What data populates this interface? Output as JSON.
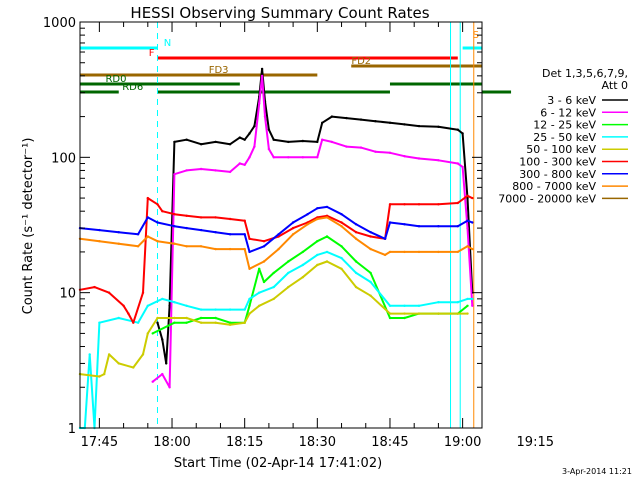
{
  "chart_data": {
    "type": "line",
    "title": "HESSI Observing Summary Count Rates",
    "xlabel": "Start Time (02-Apr-14 17:41:02)",
    "ylabel": "Count Rate (s⁻¹ detector⁻¹)",
    "yscale": "log",
    "ylim": [
      1,
      1000
    ],
    "xlim_minutes": [
      0,
      83
    ],
    "x_ticks": [
      {
        "t": 4,
        "label": "17:45"
      },
      {
        "t": 19,
        "label": "18:00"
      },
      {
        "t": 34,
        "label": "18:15"
      },
      {
        "t": 49,
        "label": "18:30"
      },
      {
        "t": 64,
        "label": "18:45"
      },
      {
        "t": 79,
        "label": "19:00"
      },
      {
        "t": 94,
        "label": "19:15"
      }
    ],
    "y_ticks": [
      {
        "v": 1,
        "label": "1"
      },
      {
        "v": 10,
        "label": "10"
      },
      {
        "v": 100,
        "label": "100"
      },
      {
        "v": 1000,
        "label": "1000"
      }
    ],
    "legend_header": [
      "Det 1,3,5,6,7,9,",
      "Att 0"
    ],
    "footer_date": "3-Apr-2014 11:21",
    "series": [
      {
        "name": "3 - 6 keV",
        "color": "#000000",
        "points": [
          [
            16,
            6
          ],
          [
            17,
            4.5
          ],
          [
            17.8,
            3
          ],
          [
            18.5,
            8
          ],
          [
            19.5,
            130
          ],
          [
            22,
            135
          ],
          [
            25,
            125
          ],
          [
            28,
            130
          ],
          [
            31,
            125
          ],
          [
            33,
            140
          ],
          [
            34,
            135
          ],
          [
            35,
            150
          ],
          [
            36,
            170
          ],
          [
            37,
            280
          ],
          [
            37.6,
            450
          ],
          [
            38.2,
            260
          ],
          [
            39,
            160
          ],
          [
            40,
            135
          ],
          [
            43,
            130
          ],
          [
            46,
            132
          ],
          [
            49,
            130
          ],
          [
            50,
            180
          ],
          [
            52,
            200
          ],
          [
            55,
            195
          ],
          [
            58,
            190
          ],
          [
            61,
            185
          ],
          [
            64,
            180
          ],
          [
            67,
            175
          ],
          [
            70,
            170
          ],
          [
            74,
            168
          ],
          [
            78,
            160
          ],
          [
            79,
            150
          ],
          [
            80,
            50
          ],
          [
            81,
            10
          ]
        ]
      },
      {
        "name": "6 - 12 keV",
        "color": "#ff00ff",
        "points": [
          [
            15,
            2.2
          ],
          [
            17,
            2.5
          ],
          [
            18.5,
            2
          ],
          [
            19.5,
            75
          ],
          [
            22,
            80
          ],
          [
            25,
            82
          ],
          [
            28,
            80
          ],
          [
            31,
            78
          ],
          [
            33,
            90
          ],
          [
            34,
            88
          ],
          [
            35,
            100
          ],
          [
            36,
            120
          ],
          [
            37,
            250
          ],
          [
            37.6,
            400
          ],
          [
            38.2,
            200
          ],
          [
            39,
            115
          ],
          [
            40,
            100
          ],
          [
            43,
            100
          ],
          [
            46,
            100
          ],
          [
            49,
            100
          ],
          [
            50,
            135
          ],
          [
            52,
            130
          ],
          [
            55,
            120
          ],
          [
            58,
            118
          ],
          [
            61,
            110
          ],
          [
            64,
            108
          ],
          [
            67,
            102
          ],
          [
            70,
            98
          ],
          [
            74,
            95
          ],
          [
            78,
            90
          ],
          [
            79,
            85
          ],
          [
            80,
            30
          ],
          [
            81,
            8
          ]
        ]
      },
      {
        "name": "12 - 25 keV",
        "color": "#00ff00",
        "points": [
          [
            15,
            5
          ],
          [
            19.5,
            6
          ],
          [
            22,
            6
          ],
          [
            25,
            6.5
          ],
          [
            28,
            6.5
          ],
          [
            31,
            6
          ],
          [
            34,
            6
          ],
          [
            35,
            8
          ],
          [
            37,
            15
          ],
          [
            38,
            12
          ],
          [
            40,
            14
          ],
          [
            43,
            17
          ],
          [
            46,
            20
          ],
          [
            49,
            24
          ],
          [
            51,
            26
          ],
          [
            54,
            22
          ],
          [
            57,
            17
          ],
          [
            60,
            14
          ],
          [
            64,
            6.5
          ],
          [
            67,
            6.5
          ],
          [
            70,
            7
          ],
          [
            74,
            7
          ],
          [
            78,
            7
          ],
          [
            80,
            8
          ]
        ]
      },
      {
        "name": "25 - 50 keV",
        "color": "#00ffff",
        "points": [
          [
            0,
            1
          ],
          [
            1,
            1
          ],
          [
            2,
            3.5
          ],
          [
            3,
            1
          ],
          [
            4,
            6
          ],
          [
            8,
            6.5
          ],
          [
            12,
            6
          ],
          [
            14,
            8
          ],
          [
            17,
            9
          ],
          [
            19.5,
            8.5
          ],
          [
            22,
            8
          ],
          [
            25,
            7.5
          ],
          [
            28,
            7.5
          ],
          [
            31,
            7.5
          ],
          [
            34,
            7.5
          ],
          [
            35,
            9
          ],
          [
            37,
            10
          ],
          [
            40,
            11
          ],
          [
            43,
            14
          ],
          [
            46,
            16
          ],
          [
            49,
            19
          ],
          [
            51,
            20
          ],
          [
            54,
            18
          ],
          [
            57,
            14
          ],
          [
            60,
            12
          ],
          [
            64,
            8
          ],
          [
            67,
            8
          ],
          [
            70,
            8
          ],
          [
            74,
            8.5
          ],
          [
            78,
            8.5
          ],
          [
            80,
            9
          ],
          [
            81,
            9
          ]
        ]
      },
      {
        "name": "50 - 100 keV",
        "color": "#cccc00",
        "points": [
          [
            0,
            2.5
          ],
          [
            4,
            2.4
          ],
          [
            5,
            2.5
          ],
          [
            6,
            3.5
          ],
          [
            8,
            3
          ],
          [
            11,
            2.8
          ],
          [
            13,
            3.5
          ],
          [
            14,
            5
          ],
          [
            16,
            6.5
          ],
          [
            19.5,
            6.5
          ],
          [
            22,
            6.5
          ],
          [
            25,
            6
          ],
          [
            28,
            6
          ],
          [
            31,
            5.8
          ],
          [
            34,
            6
          ],
          [
            35,
            7
          ],
          [
            37,
            8
          ],
          [
            40,
            9
          ],
          [
            43,
            11
          ],
          [
            46,
            13
          ],
          [
            49,
            16
          ],
          [
            51,
            17
          ],
          [
            54,
            15
          ],
          [
            57,
            11
          ],
          [
            60,
            9.5
          ],
          [
            64,
            7
          ],
          [
            67,
            7
          ],
          [
            70,
            7
          ],
          [
            74,
            7
          ],
          [
            78,
            7
          ],
          [
            80,
            7
          ]
        ]
      },
      {
        "name": "100 - 300 keV",
        "color": "#ff0000",
        "points": [
          [
            0,
            10.5
          ],
          [
            3,
            11
          ],
          [
            6,
            10
          ],
          [
            9,
            8
          ],
          [
            10,
            7
          ],
          [
            11,
            6
          ],
          [
            13,
            10
          ],
          [
            14,
            50
          ],
          [
            16,
            45
          ],
          [
            17,
            40
          ],
          [
            19.5,
            38
          ],
          [
            22,
            37
          ],
          [
            25,
            36
          ],
          [
            28,
            36
          ],
          [
            31,
            35
          ],
          [
            34,
            34
          ],
          [
            35,
            25
          ],
          [
            38,
            24
          ],
          [
            41,
            26
          ],
          [
            44,
            30
          ],
          [
            47,
            33
          ],
          [
            49,
            36
          ],
          [
            51,
            37
          ],
          [
            54,
            33
          ],
          [
            57,
            28
          ],
          [
            60,
            26
          ],
          [
            63,
            25
          ],
          [
            64,
            45
          ],
          [
            67,
            45
          ],
          [
            70,
            45
          ],
          [
            74,
            45
          ],
          [
            78,
            46
          ],
          [
            80,
            52
          ],
          [
            81,
            50
          ]
        ]
      },
      {
        "name": "300 - 800 keV",
        "color": "#0000ff",
        "points": [
          [
            0,
            30
          ],
          [
            4,
            29
          ],
          [
            8,
            28
          ],
          [
            12,
            27
          ],
          [
            14,
            36
          ],
          [
            16,
            33
          ],
          [
            19.5,
            31
          ],
          [
            22,
            30
          ],
          [
            25,
            29
          ],
          [
            28,
            28
          ],
          [
            31,
            27
          ],
          [
            34,
            27
          ],
          [
            35,
            20
          ],
          [
            38,
            22
          ],
          [
            41,
            27
          ],
          [
            44,
            33
          ],
          [
            47,
            38
          ],
          [
            49,
            42
          ],
          [
            51,
            43
          ],
          [
            54,
            38
          ],
          [
            57,
            32
          ],
          [
            60,
            28
          ],
          [
            63,
            25
          ],
          [
            64,
            33
          ],
          [
            67,
            32
          ],
          [
            70,
            31
          ],
          [
            74,
            31
          ],
          [
            78,
            31
          ],
          [
            80,
            34
          ],
          [
            81,
            33
          ]
        ]
      },
      {
        "name": "800 - 7000 keV",
        "color": "#ff8800",
        "points": [
          [
            0,
            25
          ],
          [
            4,
            24
          ],
          [
            8,
            23
          ],
          [
            12,
            22
          ],
          [
            14,
            26
          ],
          [
            16,
            24
          ],
          [
            19.5,
            23
          ],
          [
            22,
            22
          ],
          [
            25,
            22
          ],
          [
            28,
            21
          ],
          [
            31,
            21
          ],
          [
            34,
            21
          ],
          [
            35,
            15
          ],
          [
            38,
            17
          ],
          [
            41,
            21
          ],
          [
            44,
            27
          ],
          [
            47,
            32
          ],
          [
            49,
            35
          ],
          [
            51,
            36
          ],
          [
            54,
            31
          ],
          [
            57,
            25
          ],
          [
            60,
            21
          ],
          [
            63,
            19
          ],
          [
            64,
            20
          ],
          [
            67,
            20
          ],
          [
            70,
            20
          ],
          [
            74,
            20
          ],
          [
            78,
            20
          ],
          [
            80,
            22
          ],
          [
            81,
            21
          ]
        ]
      },
      {
        "name": "7000 - 20000 keV",
        "color": "#996600",
        "points": []
      }
    ],
    "bars": [
      {
        "label": "N",
        "start": 0,
        "end": 16,
        "level": 0,
        "color": "#00ffff"
      },
      {
        "label": "",
        "start": 79,
        "end": 99,
        "level": 0,
        "color": "#00ffff"
      },
      {
        "label": "S",
        "start": 83,
        "end": 86,
        "level": 1,
        "color": "#ff8800"
      },
      {
        "label": "F",
        "start": 16,
        "end": 78,
        "level": 2,
        "color": "#ff0000"
      },
      {
        "label": "FD2",
        "start": 56,
        "end": 99,
        "level": 3,
        "color": "#996600"
      },
      {
        "label": "FD3",
        "start": 0,
        "end": 49,
        "level": 4,
        "color": "#996600"
      },
      {
        "label": "RD0",
        "start": 0,
        "end": 33,
        "level": 5,
        "color": "#006600"
      },
      {
        "label": "",
        "start": 64,
        "end": 89,
        "level": 5,
        "color": "#006600"
      },
      {
        "label": "RD6",
        "start": 0,
        "end": 8,
        "level": 6,
        "color": "#006600"
      },
      {
        "label": "",
        "start": 16,
        "end": 64,
        "level": 6,
        "color": "#006600"
      },
      {
        "label": "",
        "start": 89,
        "end": 99,
        "level": 6,
        "color": "#006600"
      }
    ],
    "vlines": [
      {
        "t": 16,
        "color": "#00ffff",
        "dash": true
      },
      {
        "t": 76.5,
        "color": "#00ffff",
        "dash": false
      },
      {
        "t": 78.5,
        "color": "#00ffff",
        "dash": false
      },
      {
        "t": 81.3,
        "color": "#ff8800",
        "dash": false
      },
      {
        "t": 85,
        "color": "#ff8800",
        "dash": true
      },
      {
        "t": 94,
        "color": "#00ffff",
        "dash": true
      }
    ]
  }
}
